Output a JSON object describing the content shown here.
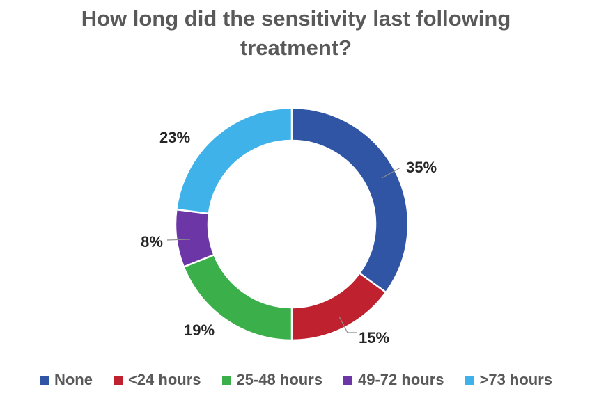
{
  "chart_data": {
    "type": "pie",
    "variant": "donut",
    "title": "How long did the sensitivity last following treatment?",
    "categories": [
      "None",
      "<24 hours",
      "25-48 hours",
      "49-72 hours",
      ">73 hours"
    ],
    "values": [
      35,
      15,
      19,
      8,
      23
    ],
    "labels": [
      "35%",
      "15%",
      "19%",
      "8%",
      "23%"
    ],
    "colors": [
      "#2f55a4",
      "#c0212f",
      "#3bb04a",
      "#6c36a6",
      "#3fb2ea"
    ],
    "legend_position": "bottom",
    "unit": "%"
  }
}
